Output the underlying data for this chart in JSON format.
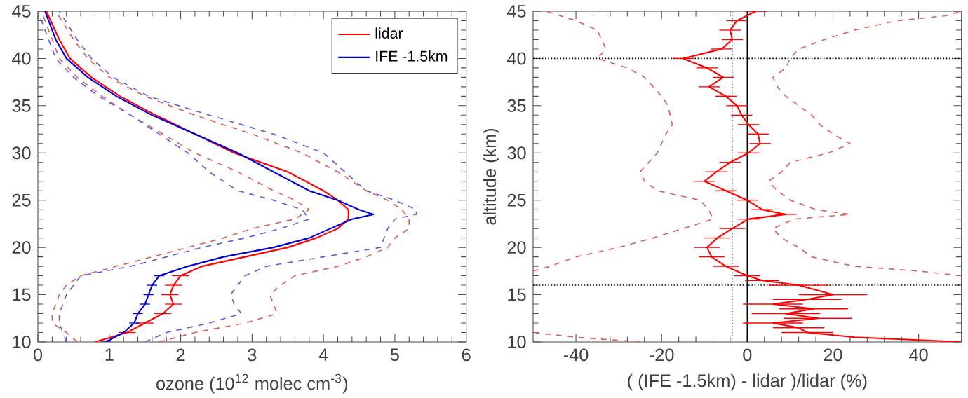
{
  "chart_data": [
    {
      "type": "line",
      "xlabel": "ozone  (10$^{12}$ molec cm$^{-3}$)",
      "xlim": [
        0,
        6
      ],
      "xticks": [
        0,
        1,
        2,
        3,
        4,
        5,
        6
      ],
      "ylim": [
        10,
        45
      ],
      "yticks": [
        10,
        15,
        20,
        25,
        30,
        35,
        40,
        45
      ],
      "legend": "top right",
      "grid": false,
      "series": [
        {
          "color": "#e05a5a",
          "line_style": "dashed",
          "values": [
            10,
            11,
            12,
            13,
            14,
            15,
            16,
            17,
            18,
            19,
            20,
            21,
            22,
            23,
            24,
            25,
            26,
            28,
            30,
            32,
            34,
            36,
            38,
            40,
            42,
            45
          ],
          "x": [
            0.55,
            0.4,
            0.2,
            0.2,
            0.25,
            0.3,
            0.4,
            0.6,
            1.1,
            1.6,
            2.1,
            2.6,
            3.0,
            3.6,
            3.8,
            3.6,
            3.3,
            2.8,
            2.2,
            1.75,
            1.3,
            0.9,
            0.55,
            0.3,
            0.2,
            0.05
          ]
        },
        {
          "color": "#e05a5a",
          "line_style": "dashed",
          "values": [
            10,
            11,
            12,
            13,
            14,
            15,
            16,
            17,
            18,
            19,
            20,
            21,
            22,
            23,
            24,
            25,
            26,
            28,
            30,
            32,
            34,
            36,
            38,
            40,
            42,
            45
          ],
          "x": [
            1.7,
            2.2,
            2.9,
            3.35,
            3.3,
            3.25,
            3.4,
            3.6,
            4.2,
            4.6,
            4.9,
            5.0,
            5.2,
            5.2,
            5.1,
            4.9,
            4.6,
            4.2,
            3.7,
            3.0,
            2.2,
            1.5,
            1.0,
            0.7,
            0.5,
            0.25
          ]
        },
        {
          "color": "#5a5ae6",
          "line_style": "dashed",
          "values": [
            10,
            11,
            12,
            13,
            14,
            15,
            16,
            17,
            18,
            19,
            20,
            21,
            22,
            23,
            24,
            25,
            26,
            28,
            30,
            32,
            34,
            36,
            38,
            40,
            42,
            45
          ],
          "x": [
            0.4,
            0.35,
            0.3,
            0.3,
            0.35,
            0.4,
            0.5,
            0.6,
            1.3,
            1.8,
            2.3,
            2.9,
            3.4,
            3.8,
            3.7,
            3.3,
            2.8,
            2.4,
            2.1,
            1.7,
            1.3,
            0.85,
            0.5,
            0.25,
            0.15,
            0.0
          ]
        },
        {
          "color": "#5a5ae6",
          "line_style": "dashed",
          "values": [
            10,
            11,
            12,
            13,
            14,
            15,
            16,
            17,
            18,
            19,
            20,
            21,
            22,
            23,
            23.5,
            24,
            25,
            26,
            28,
            30,
            32,
            34,
            36,
            38,
            40,
            42,
            45
          ],
          "x": [
            1.5,
            1.8,
            2.4,
            2.85,
            2.75,
            2.7,
            2.8,
            2.9,
            3.2,
            4.0,
            4.8,
            4.85,
            4.9,
            5.0,
            5.3,
            5.3,
            5.0,
            4.6,
            4.3,
            4.0,
            3.3,
            2.4,
            1.55,
            1.05,
            0.75,
            0.55,
            0.3
          ]
        },
        {
          "name": "lidar",
          "color": "#ff0000",
          "line_style": "solid",
          "values": [
            10,
            11,
            12,
            13,
            14,
            15,
            16,
            17,
            18,
            19,
            20,
            21,
            22,
            23,
            24,
            25,
            26,
            28,
            30,
            32,
            34,
            36,
            38,
            40,
            42,
            45
          ],
          "x": [
            0.8,
            1.25,
            1.5,
            1.75,
            1.9,
            1.85,
            1.9,
            2.0,
            2.3,
            2.9,
            3.5,
            3.9,
            4.2,
            4.35,
            4.35,
            4.2,
            4.0,
            3.5,
            2.75,
            2.2,
            1.65,
            1.15,
            0.75,
            0.45,
            0.3,
            0.12
          ],
          "xerrors": [
            null,
            0.12,
            0.12,
            0.12,
            0.12,
            0.12,
            0.12,
            0.12,
            null,
            null,
            null,
            null,
            null,
            null,
            null,
            null,
            null,
            null,
            null,
            null,
            null,
            null,
            null,
            null,
            null,
            null
          ]
        },
        {
          "name": "IFE -1.5km",
          "color": "#0000dd",
          "line_style": "solid",
          "values": [
            10,
            11,
            12,
            13,
            14,
            15,
            16,
            17,
            18,
            19,
            20,
            21,
            22,
            23,
            23.5,
            24,
            25,
            26,
            28,
            30,
            32,
            34,
            36,
            38,
            40,
            42,
            45
          ],
          "x": [
            0.95,
            1.2,
            1.35,
            1.4,
            1.5,
            1.55,
            1.6,
            1.7,
            2.1,
            2.6,
            3.3,
            3.8,
            4.1,
            4.4,
            4.7,
            4.5,
            4.2,
            3.8,
            3.3,
            2.8,
            2.2,
            1.6,
            1.1,
            0.7,
            0.4,
            0.25,
            0.1
          ],
          "xerrors": [
            0.07,
            null,
            0.07,
            0.07,
            0.07,
            0.07,
            0.07,
            0.07,
            null,
            null,
            null,
            null,
            null,
            null,
            null,
            null,
            null,
            null,
            null,
            null,
            null,
            null,
            null,
            null,
            null,
            null,
            null
          ]
        }
      ]
    },
    {
      "type": "line",
      "xlabel": "( (IFE -1.5km) - lidar )/lidar  (%)",
      "ylabel": "altitude  (km)",
      "xlim": [
        -50,
        50
      ],
      "xticks": [
        -40,
        -20,
        0,
        20,
        40
      ],
      "ylim": [
        10,
        45
      ],
      "yticks": [
        10,
        15,
        20,
        25,
        30,
        35,
        40,
        45
      ],
      "grid": false,
      "ref_lines": [
        {
          "axis": "y",
          "value": 40,
          "line_style": "dotted",
          "color": "#000000"
        },
        {
          "axis": "y",
          "value": 16,
          "line_style": "dotted",
          "color": "#000000"
        },
        {
          "axis": "x",
          "value": 0,
          "line_style": "solid",
          "color": "#000000"
        },
        {
          "axis": "x",
          "value": -3.5,
          "line_style": "dotted",
          "color": "#808080"
        }
      ],
      "series": [
        {
          "color": "#e05a5a",
          "line_style": "dashed",
          "values": [
            10,
            10.5,
            11
          ],
          "x": [
            -25,
            -40,
            -50
          ]
        },
        {
          "color": "#e05a5a",
          "line_style": "dashed",
          "values": [
            17.5,
            18,
            19,
            20,
            21,
            22,
            23,
            24,
            25,
            26,
            27,
            28,
            29,
            30,
            31,
            32,
            33,
            34,
            35,
            36,
            37,
            38,
            39,
            40,
            41,
            42,
            43,
            44,
            45
          ],
          "x": [
            -50,
            -46,
            -40,
            -30,
            -22,
            -15,
            -8,
            -9,
            -11,
            -21,
            -24,
            -25,
            -23,
            -21,
            -20,
            -19,
            -17.5,
            -18,
            -18.5,
            -20,
            -22,
            -24,
            -28,
            -35,
            -33,
            -34,
            -35,
            -40,
            -47
          ]
        },
        {
          "color": "#e05a5a",
          "line_style": "dashed",
          "values": [
            17,
            17.5,
            18,
            19,
            20,
            21,
            22,
            23,
            23.5,
            24,
            25,
            26,
            27,
            28,
            29,
            30,
            31,
            32,
            33,
            34,
            35,
            36,
            37,
            38,
            39,
            40,
            41,
            42,
            43,
            44,
            44.5,
            45
          ],
          "x": [
            50,
            40,
            25,
            15,
            12,
            8,
            6,
            11,
            24,
            16,
            10,
            7,
            5,
            8,
            10,
            19,
            24,
            20,
            17,
            15,
            12,
            9,
            7,
            6,
            9,
            10,
            12,
            18,
            25,
            35,
            46,
            50
          ]
        },
        {
          "color": "#ff0000",
          "line_style": "solid",
          "values": [
            10,
            10.5,
            11,
            11.5,
            12,
            12.5,
            13,
            13.5,
            14,
            14.5,
            15,
            16,
            16.5,
            17,
            18,
            19,
            20,
            21,
            22,
            23,
            23.5,
            24,
            25,
            26,
            27,
            28,
            29,
            30,
            31,
            32,
            33,
            34,
            35,
            36,
            37,
            38,
            39,
            40,
            41,
            42,
            43,
            44,
            45
          ],
          "x": [
            50,
            25,
            14,
            12,
            6,
            16.5,
            9,
            15.5,
            6,
            14,
            20,
            12,
            3.5,
            0,
            -5,
            -8.3,
            -9.4,
            -7,
            -3.5,
            0.3,
            9,
            3.5,
            0,
            -5,
            -10,
            -7.2,
            -4,
            0.3,
            3,
            2.5,
            0.3,
            -1.3,
            -2.4,
            -5,
            -8.9,
            -5.6,
            -9.4,
            -15,
            -6,
            -3.5,
            -4,
            -2.4,
            2
          ],
          "xerrors": [
            null,
            null,
            6,
            6,
            7,
            8,
            8,
            8,
            7,
            8,
            8,
            7,
            4,
            3,
            3,
            3,
            3,
            3,
            3,
            2.5,
            2.5,
            2.5,
            2.5,
            2.5,
            2.5,
            2.5,
            2.5,
            2.5,
            2.5,
            2.5,
            2.5,
            2.5,
            2.5,
            2.5,
            2.5,
            2.5,
            2.5,
            2.5,
            2.5,
            2.5,
            2.5,
            2.5,
            2.5
          ]
        }
      ]
    }
  ]
}
